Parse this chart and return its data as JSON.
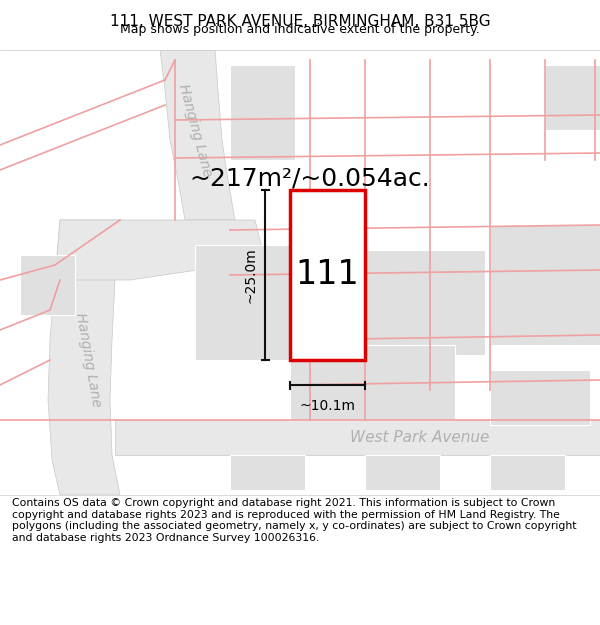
{
  "title": "111, WEST PARK AVENUE, BIRMINGHAM, B31 5BG",
  "subtitle": "Map shows position and indicative extent of the property.",
  "footer": "Contains OS data © Crown copyright and database right 2021. This information is subject to Crown copyright and database rights 2023 and is reproduced with the permission of HM Land Registry. The polygons (including the associated geometry, namely x, y co-ordinates) are subject to Crown copyright and database rights 2023 Ordnance Survey 100026316.",
  "area_text": "~217m²/~0.054ac.",
  "width_text": "~10.1m",
  "height_text": "~25.0m",
  "house_number": "111",
  "background_color": "#ffffff",
  "map_bg": "#ffffff",
  "building_color": "#e0e0e0",
  "plot_outline_color": "#dd0000",
  "plot_fill": "#ffffff",
  "pink_line_color": "#f0a0a0",
  "road_outline_color": "#d0d0d0",
  "dim_line_color": "#111111",
  "title_fontsize": 11,
  "subtitle_fontsize": 9,
  "footer_fontsize": 7.8,
  "area_fontsize": 18,
  "label_fontsize": 10,
  "house_num_fontsize": 24,
  "road_label_color": "#b0b0b0",
  "street_label_fontsize": 11,
  "hanging_lane_fontsize": 10
}
